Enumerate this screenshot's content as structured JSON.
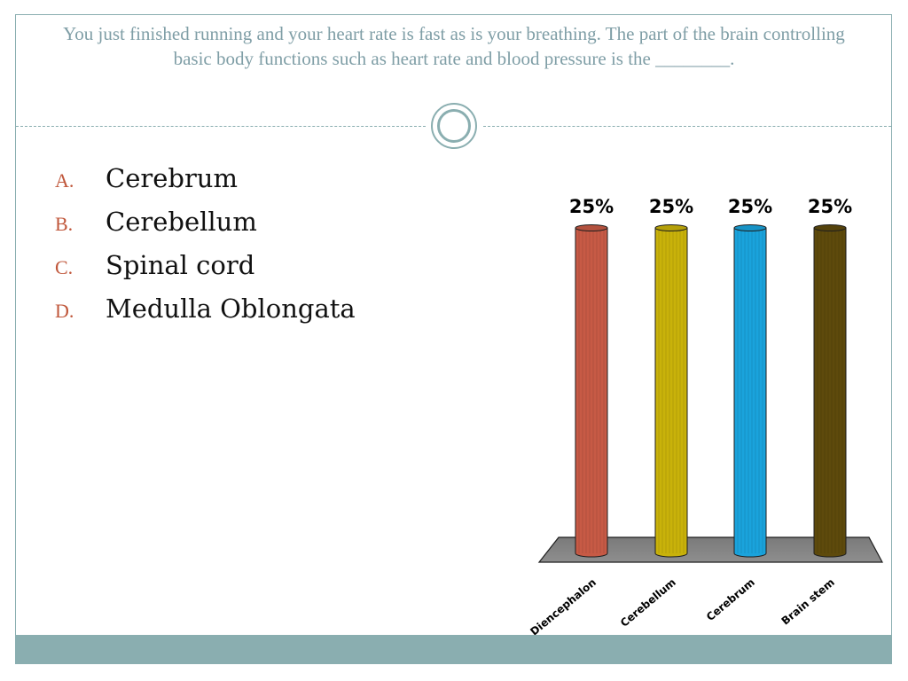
{
  "question": {
    "text": "You just finished running and your heart rate is fast as is your breathing. The part of the brain controlling basic body functions such as heart rate and blood pressure is the ________."
  },
  "answers": [
    {
      "letter": "A.",
      "text": "Cerebrum"
    },
    {
      "letter": "B.",
      "text": "Cerebellum"
    },
    {
      "letter": "C.",
      "text": "Spinal cord"
    },
    {
      "letter": "D.",
      "text": "Medulla Oblongata"
    }
  ],
  "colors": {
    "accent": "#8aaeb0",
    "question_text": "#7f9ea6",
    "letter": "#c0573b"
  },
  "chart_data": {
    "type": "bar",
    "categories": [
      "Diencephalon",
      "Cerebellum",
      "Cerebrum",
      "Brain stem"
    ],
    "values": [
      25,
      25,
      25,
      25
    ],
    "value_labels": [
      "25%",
      "25%",
      "25%",
      "25%"
    ],
    "colors": [
      "#c75a45",
      "#c9b20a",
      "#1aa3dc",
      "#5e4a0c"
    ],
    "ylim": [
      0,
      25
    ],
    "grid": false,
    "legend": "none",
    "title": "",
    "xlabel": "",
    "ylabel": ""
  }
}
